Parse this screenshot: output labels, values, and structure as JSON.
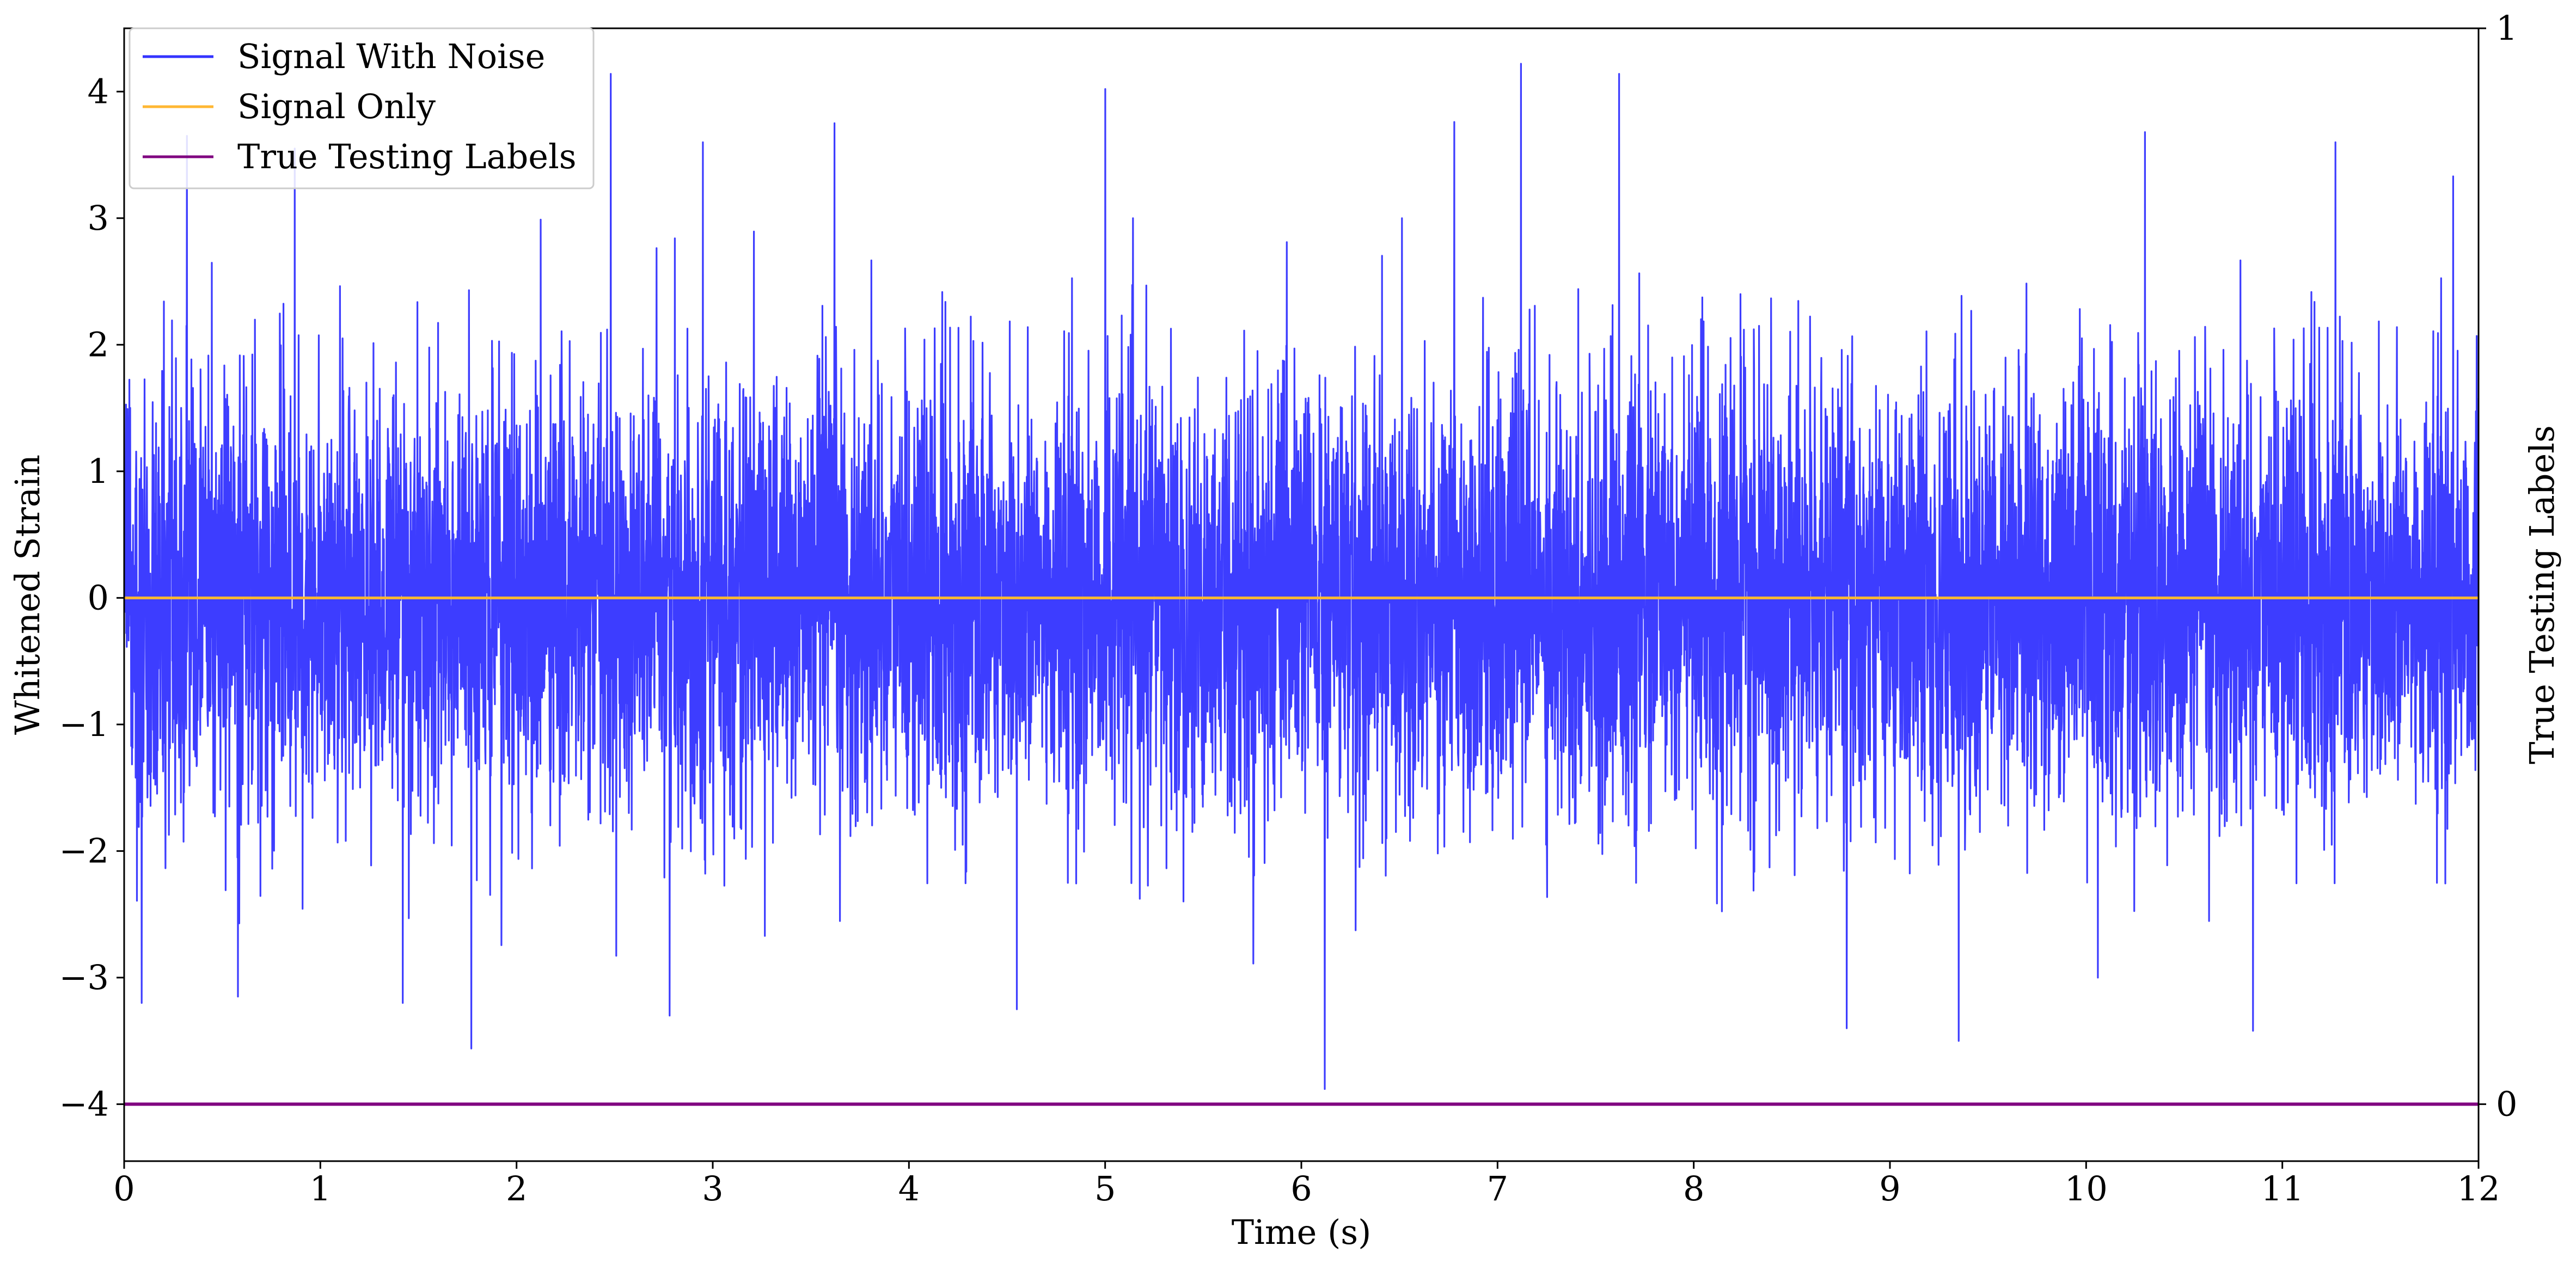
{
  "chart_data": {
    "type": "line",
    "title": "",
    "xlabel": "Time (s)",
    "ylabel": "Whitened Strain",
    "y2label": "True Testing Labels",
    "xlim": [
      0,
      12
    ],
    "ylim": [
      -4.45,
      4.5
    ],
    "y2lim": [
      0,
      1
    ],
    "x_ticks": [
      0,
      1,
      2,
      3,
      4,
      5,
      6,
      7,
      8,
      9,
      10,
      11,
      12
    ],
    "y_ticks": [
      4,
      3,
      2,
      1,
      0,
      -1,
      -2,
      -3,
      -4
    ],
    "y_tick_labels": [
      "4",
      "3",
      "2",
      "1",
      "0",
      "−1",
      "−2",
      "−3",
      "−4"
    ],
    "y2_ticks": [
      1,
      0
    ],
    "y2_tick_labels": [
      "1",
      "0"
    ],
    "grid": false,
    "legend": {
      "position": "top-left",
      "entries": [
        {
          "label": "Signal With Noise",
          "color": "#3333ff"
        },
        {
          "label": "Signal Only",
          "color": "#ffb733"
        },
        {
          "label": "True Testing Labels",
          "color": "#800080"
        }
      ]
    },
    "series": [
      {
        "name": "Signal With Noise",
        "color": "#3333ff",
        "axis": "left",
        "description_stats": {
          "mean": 0,
          "std": 0.85,
          "min": -3.9,
          "max": 4.22
        },
        "peaks": [
          {
            "x": 0.09,
            "y": -3.2
          },
          {
            "x": 0.32,
            "y": 3.65
          },
          {
            "x": 0.58,
            "y": -3.15
          },
          {
            "x": 0.87,
            "y": 3.55
          },
          {
            "x": 1.42,
            "y": -3.2
          },
          {
            "x": 1.77,
            "y": -3.56
          },
          {
            "x": 2.48,
            "y": 4.14
          },
          {
            "x": 2.78,
            "y": -3.3
          },
          {
            "x": 2.95,
            "y": 3.6
          },
          {
            "x": 3.62,
            "y": 3.75
          },
          {
            "x": 4.55,
            "y": -3.25
          },
          {
            "x": 5.0,
            "y": 4.02
          },
          {
            "x": 6.12,
            "y": -3.88
          },
          {
            "x": 6.78,
            "y": 3.76
          },
          {
            "x": 7.12,
            "y": 4.22
          },
          {
            "x": 7.62,
            "y": 4.14
          },
          {
            "x": 8.78,
            "y": -3.4
          },
          {
            "x": 9.35,
            "y": -3.5
          },
          {
            "x": 10.3,
            "y": 3.68
          },
          {
            "x": 10.85,
            "y": -3.42
          },
          {
            "x": 11.27,
            "y": 3.6
          },
          {
            "x": 11.87,
            "y": 3.33
          }
        ]
      },
      {
        "name": "Signal Only",
        "color": "#ffb733",
        "axis": "left",
        "x": [
          0,
          12
        ],
        "values": [
          0,
          0
        ]
      },
      {
        "name": "True Testing Labels",
        "color": "#800080",
        "axis": "right",
        "x": [
          0,
          12
        ],
        "values": [
          0,
          0
        ]
      }
    ]
  }
}
